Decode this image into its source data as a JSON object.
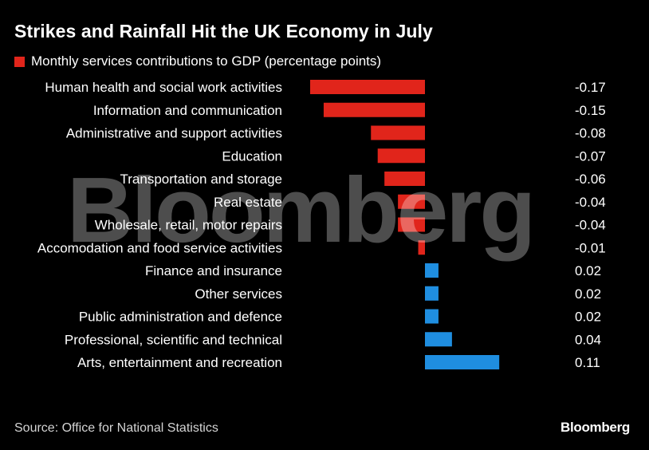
{
  "title": "Strikes and Rainfall Hit the UK Economy in July",
  "source": "Source: Office for National Statistics",
  "brand": "Bloomberg",
  "watermark": "Bloomberg",
  "colors": {
    "negative": "#e1251b",
    "positive": "#1f8ee0",
    "background": "#000000"
  },
  "chart_data": {
    "type": "bar",
    "orientation": "horizontal",
    "title": "Strikes and Rainfall Hit the UK Economy in July",
    "legend": {
      "label": "Monthly services contributions to GDP (percentage points)",
      "placement": "top-left"
    },
    "categories": [
      "Human health and social work activities",
      "Information and communication",
      "Administrative and support activities",
      "Education",
      "Transportation and storage",
      "Real estate",
      "Wholesale, retail, motor repairs",
      "Accomodation and food service activities",
      "Finance and insurance",
      "Other services",
      "Public administration and defence",
      "Professional, scientific and technical",
      "Arts, entertainment and recreation"
    ],
    "values": [
      -0.17,
      -0.15,
      -0.08,
      -0.07,
      -0.06,
      -0.04,
      -0.04,
      -0.01,
      0.02,
      0.02,
      0.02,
      0.04,
      0.11
    ],
    "value_labels": [
      "-0.17",
      "-0.15",
      "-0.08",
      "-0.07",
      "-0.06",
      "-0.04",
      "-0.04",
      "-0.01",
      "0.02",
      "0.02",
      "0.02",
      "0.04",
      "0.11"
    ],
    "grid": false
  }
}
